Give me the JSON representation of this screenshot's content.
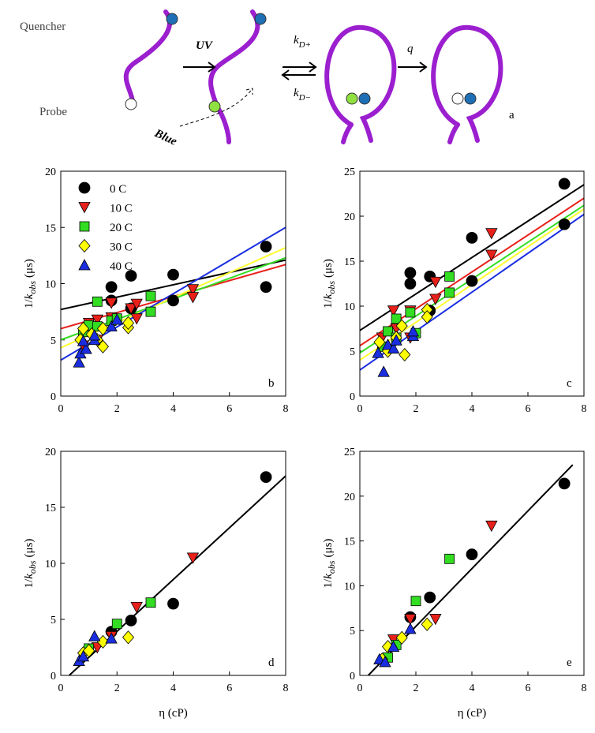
{
  "diagram": {
    "quencher": "Quencher",
    "probe": "Probe",
    "uv": "UV",
    "blue": "Blue",
    "k_plus": {
      "main": "k",
      "sub": "D+"
    },
    "k_minus": {
      "main": "k",
      "sub": "D−"
    },
    "q": "q",
    "panel": "a"
  },
  "chart_data": [
    {
      "type": "scatter",
      "panel": "b",
      "xlim": [
        0,
        8
      ],
      "xticks": [
        0,
        2,
        4,
        6,
        8
      ],
      "ylim": [
        0,
        20
      ],
      "yticks": [
        0,
        5,
        10,
        15,
        20
      ],
      "legend": "top-left",
      "y_label": {
        "prefix": "1/",
        "main": "k",
        "sub": "obs",
        "unit": "(μs)"
      },
      "series": [
        {
          "name": "0 C",
          "color": "#000000",
          "marker": "circle",
          "x": [
            1.8,
            1.8,
            2.5,
            2.5,
            4.0,
            4.0,
            7.3,
            7.3
          ],
          "values": [
            8.5,
            9.7,
            7.8,
            10.7,
            8.5,
            10.8,
            13.3,
            9.7
          ],
          "fit": {
            "x": [
              0,
              8
            ],
            "y": [
              7.7,
              12.1
            ]
          }
        },
        {
          "name": "10 C",
          "color": "#e8201a",
          "marker": "triangle-down",
          "x": [
            0.8,
            1.0,
            1.3,
            1.3,
            1.8,
            1.8,
            2.5,
            2.7,
            2.7,
            4.7,
            4.7
          ],
          "values": [
            4.5,
            6.5,
            5.0,
            6.8,
            7.0,
            8.3,
            7.8,
            8.2,
            6.9,
            9.5,
            8.8
          ],
          "fit": {
            "x": [
              0,
              8
            ],
            "y": [
              6.0,
              11.7
            ]
          }
        },
        {
          "name": "20 C",
          "color": "#33dd22",
          "marker": "square",
          "x": [
            0.8,
            1.0,
            1.3,
            1.3,
            1.8,
            2.0,
            3.2,
            3.2
          ],
          "values": [
            5.7,
            6.3,
            8.4,
            6.2,
            6.7,
            6.9,
            8.9,
            7.5
          ],
          "fit": {
            "x": [
              0,
              8
            ],
            "y": [
              5.0,
              12.3
            ]
          }
        },
        {
          "name": "30 C",
          "color": "#ffff00",
          "marker": "diamond",
          "x": [
            0.7,
            0.8,
            1.1,
            1.3,
            1.5,
            1.5,
            2.4,
            2.4
          ],
          "values": [
            5.0,
            6.0,
            5.5,
            5.0,
            4.4,
            6.0,
            6.1,
            6.5
          ],
          "fit": {
            "x": [
              0,
              8
            ],
            "y": [
              4.3,
              13.2
            ]
          }
        },
        {
          "name": "40 C",
          "color": "#1a2ee0",
          "marker": "triangle-up",
          "x": [
            0.65,
            0.7,
            0.9,
            1.2,
            1.2,
            1.8,
            2.0,
            0.8
          ],
          "values": [
            3.0,
            3.8,
            4.2,
            5.0,
            5.4,
            6.2,
            6.8,
            4.9
          ],
          "fit": {
            "x": [
              0,
              8
            ],
            "y": [
              3.2,
              15.0
            ]
          }
        }
      ]
    },
    {
      "type": "scatter",
      "panel": "c",
      "xlim": [
        0,
        8
      ],
      "xticks": [
        0,
        2,
        4,
        6,
        8
      ],
      "ylim": [
        0,
        25
      ],
      "yticks": [
        0,
        5,
        10,
        15,
        20,
        25
      ],
      "y_label": {
        "prefix": "1/",
        "main": "k",
        "sub": "obs",
        "unit": "(μs)"
      },
      "series": [
        {
          "color": "#000000",
          "marker": "circle",
          "x": [
            1.8,
            1.8,
            2.5,
            2.5,
            4.0,
            4.0,
            7.3,
            7.3
          ],
          "values": [
            13.7,
            12.5,
            13.3,
            9.5,
            17.6,
            12.8,
            23.6,
            19.1
          ],
          "fit": {
            "x": [
              0,
              8
            ],
            "y": [
              7.3,
              23.5
            ]
          }
        },
        {
          "color": "#e8201a",
          "marker": "triangle-down",
          "x": [
            0.8,
            1.2,
            1.3,
            1.8,
            1.8,
            2.7,
            2.7,
            4.7,
            4.7
          ],
          "values": [
            6.5,
            9.5,
            7.5,
            9.5,
            6.5,
            12.7,
            10.8,
            18.1,
            15.7
          ],
          "fit": {
            "x": [
              0,
              8
            ],
            "y": [
              5.6,
              22
            ]
          }
        },
        {
          "color": "#33dd22",
          "marker": "square",
          "x": [
            0.8,
            1.0,
            1.3,
            1.3,
            1.8,
            2.0,
            3.2,
            3.2
          ],
          "values": [
            5.5,
            7.2,
            8.6,
            6.5,
            9.3,
            7.0,
            13.3,
            11.5
          ],
          "fit": {
            "x": [
              0,
              8
            ],
            "y": [
              4.8,
              21.2
            ]
          }
        },
        {
          "color": "#ffff00",
          "marker": "diamond",
          "x": [
            0.7,
            1.0,
            1.3,
            1.5,
            1.6,
            2.4,
            2.4
          ],
          "values": [
            6.0,
            5.0,
            6.5,
            7.8,
            4.6,
            9.6,
            8.8
          ],
          "fit": {
            "x": [
              0,
              8
            ],
            "y": [
              4.0,
              20.8
            ]
          }
        },
        {
          "color": "#1a2ee0",
          "marker": "triangle-up",
          "x": [
            0.65,
            0.85,
            1.0,
            1.2,
            1.3,
            1.9,
            1.9
          ],
          "values": [
            4.8,
            2.7,
            5.7,
            5.3,
            6.2,
            6.7,
            7.2
          ],
          "fit": {
            "x": [
              0,
              8
            ],
            "y": [
              2.9,
              20.2
            ]
          }
        }
      ]
    },
    {
      "type": "scatter",
      "panel": "d",
      "xlim": [
        0,
        8
      ],
      "xticks": [
        0,
        2,
        4,
        6,
        8
      ],
      "ylim": [
        0,
        20
      ],
      "yticks": [
        0,
        5,
        10,
        15,
        20
      ],
      "x_label": "η (cP)",
      "y_label": {
        "prefix": "1/",
        "main": "k",
        "sub": "obs",
        "unit": "(μs)"
      },
      "series": [
        {
          "color": "#000000",
          "marker": "circle",
          "x": [
            1.8,
            2.5,
            4.0,
            7.3
          ],
          "values": [
            3.9,
            4.9,
            6.4,
            17.7
          ],
          "fit": {
            "x": [
              0.3,
              8
            ],
            "y": [
              0,
              17.8
            ]
          }
        },
        {
          "color": "#e8201a",
          "marker": "triangle-down",
          "x": [
            1.3,
            1.8,
            2.7,
            4.7
          ],
          "values": [
            2.5,
            3.5,
            6.1,
            10.5
          ]
        },
        {
          "color": "#33dd22",
          "marker": "square",
          "x": [
            1.0,
            2.0,
            3.2
          ],
          "values": [
            2.4,
            4.6,
            6.5
          ]
        },
        {
          "color": "#ffff00",
          "marker": "diamond",
          "x": [
            0.8,
            1.0,
            1.5,
            2.4
          ],
          "values": [
            2.0,
            2.2,
            3.0,
            3.4
          ]
        },
        {
          "color": "#1a2ee0",
          "marker": "triangle-up",
          "x": [
            0.65,
            0.8,
            1.2,
            1.8
          ],
          "values": [
            1.3,
            1.7,
            3.5,
            3.3
          ]
        }
      ]
    },
    {
      "type": "scatter",
      "panel": "e",
      "xlim": [
        0,
        8
      ],
      "xticks": [
        0,
        2,
        4,
        6,
        8
      ],
      "ylim": [
        0,
        25
      ],
      "yticks": [
        0,
        5,
        10,
        15,
        20,
        25
      ],
      "x_label": "η (cP)",
      "y_label": {
        "prefix": "1/",
        "main": "k",
        "sub": "obs",
        "unit": "(μs)"
      },
      "series": [
        {
          "color": "#000000",
          "marker": "circle",
          "x": [
            1.8,
            2.5,
            4.0,
            7.3
          ],
          "values": [
            6.5,
            8.7,
            13.5,
            21.4
          ],
          "fit": {
            "x": [
              0.3,
              7.6
            ],
            "y": [
              0,
              23.5
            ]
          }
        },
        {
          "color": "#e8201a",
          "marker": "triangle-down",
          "x": [
            1.2,
            1.8,
            2.7,
            4.7
          ],
          "values": [
            4.0,
            6.3,
            6.3,
            16.7
          ]
        },
        {
          "color": "#33dd22",
          "marker": "square",
          "x": [
            1.0,
            1.3,
            2.0,
            3.2
          ],
          "values": [
            2.0,
            3.4,
            8.3,
            13.0
          ]
        },
        {
          "color": "#ffff00",
          "marker": "diamond",
          "x": [
            0.8,
            1.0,
            1.5,
            2.4
          ],
          "values": [
            1.8,
            3.2,
            4.2,
            5.7
          ]
        },
        {
          "color": "#1a2ee0",
          "marker": "triangle-up",
          "x": [
            0.7,
            0.9,
            1.2,
            1.8
          ],
          "values": [
            1.8,
            1.5,
            3.2,
            5.2
          ]
        }
      ]
    }
  ]
}
